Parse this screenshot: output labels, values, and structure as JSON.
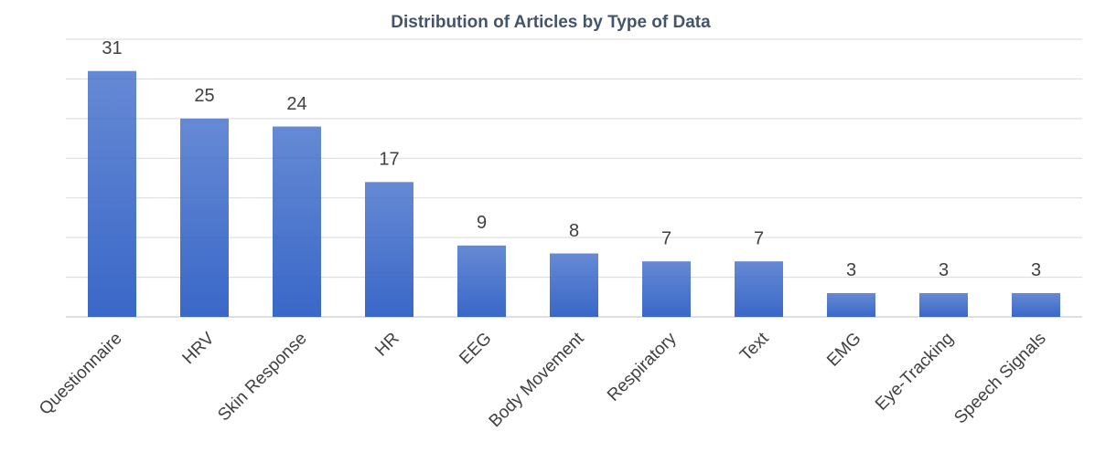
{
  "chart_data": {
    "type": "bar",
    "title": "Distribution of Articles by Type of Data",
    "categories": [
      "Questionnaire",
      "HRV",
      "Skin Response",
      "HR",
      "EEG",
      "Body Movement",
      "Respiratory",
      "Text",
      "EMG",
      "Eye-Tracking",
      "Speech Signals"
    ],
    "values": [
      31,
      25,
      24,
      17,
      9,
      8,
      7,
      7,
      3,
      3,
      3
    ],
    "color": "#3a68c8",
    "ylim": [
      0,
      35
    ],
    "yticks": [
      0,
      5,
      10,
      15,
      20,
      25,
      30,
      35
    ],
    "grid": true
  }
}
